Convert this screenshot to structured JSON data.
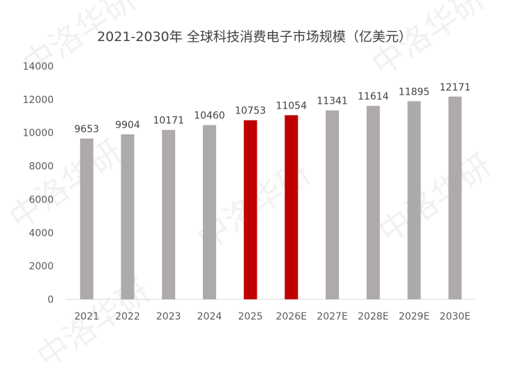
{
  "chart_data": {
    "type": "bar",
    "title": "2021-2030年 全球科技消费电子市场规模（亿美元）",
    "categories": [
      "2021",
      "2022",
      "2023",
      "2024",
      "2025",
      "2026E",
      "2027E",
      "2028E",
      "2029E",
      "2030E"
    ],
    "values": [
      9653,
      9904,
      10171,
      10460,
      10753,
      11054,
      11341,
      11614,
      11895,
      12171
    ],
    "highlighted": [
      "2025",
      "2026E"
    ],
    "ylim": [
      0,
      14000
    ],
    "yticks": [
      0,
      2000,
      4000,
      6000,
      8000,
      10000,
      12000,
      14000
    ],
    "xlabel": "",
    "ylabel": "",
    "grid": false,
    "legend": "none",
    "colors": {
      "bar": "#aeaaaa",
      "highlight": "#c00000",
      "axis": "#d9d9d9"
    }
  },
  "watermark": "中洛华研"
}
